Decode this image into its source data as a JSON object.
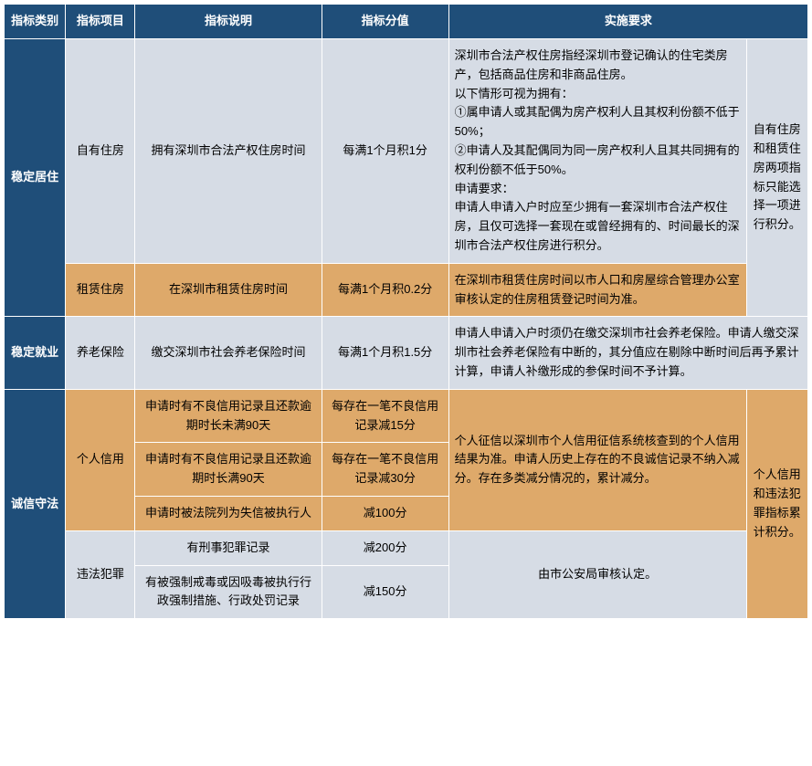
{
  "headers": {
    "category": "指标类别",
    "item": "指标项目",
    "desc": "指标说明",
    "score": "指标分值",
    "requirement": "实施要求"
  },
  "colors": {
    "header_bg": "#1f4e79",
    "header_fg": "#ffffff",
    "blue_bg": "#d6dce5",
    "orange_bg": "#dea96a",
    "border": "#ffffff"
  },
  "rows": {
    "r1": {
      "category": "稳定居住",
      "item": "自有住房",
      "desc": "拥有深圳市合法产权住房时间",
      "score": "每满1个月积1分",
      "req": "深圳市合法产权住房指经深圳市登记确认的住宅类房产，包括商品住房和非商品住房。\n以下情形可视为拥有：\n①属申请人或其配偶为房产权利人且其权利份额不低于50%；\n②申请人及其配偶同为同一房产权利人且其共同拥有的权利份额不低于50%。\n申请要求：\n申请人申请入户时应至少拥有一套深圳市合法产权住房，且仅可选择一套现在或曾经拥有的、时间最长的深圳市合法产权住房进行积分。",
      "note": "自有住房和租赁住房两项指标只能选择一项进行积分。"
    },
    "r2": {
      "item": "租赁住房",
      "desc": "在深圳市租赁住房时间",
      "score": "每满1个月积0.2分",
      "req": "在深圳市租赁住房时间以市人口和房屋综合管理办公室审核认定的住房租赁登记时间为准。"
    },
    "r3": {
      "category": "稳定就业",
      "item": "养老保险",
      "desc": "缴交深圳市社会养老保险时间",
      "score": "每满1个月积1.5分",
      "req": "申请人申请入户时须仍在缴交深圳市社会养老保险。申请人缴交深圳市社会养老保险有中断的，其分值应在剔除中断时间后再予累计计算，申请人补缴形成的参保时间不予计算。"
    },
    "r4": {
      "category": "诚信守法",
      "item": "个人信用",
      "desc": "申请时有不良信用记录且还款逾期时长未满90天",
      "score": "每存在一笔不良信用记录减15分",
      "req": "个人征信以深圳市个人信用征信系统核查到的个人信用结果为准。申请人历史上存在的不良诚信记录不纳入减分。存在多类减分情况的，累计减分。",
      "note": "个人信用和违法犯罪指标累计积分。"
    },
    "r5": {
      "desc": "申请时有不良信用记录且还款逾期时长满90天",
      "score": "每存在一笔不良信用记录减30分"
    },
    "r6": {
      "desc": "申请时被法院列为失信被执行人",
      "score": "减100分"
    },
    "r7": {
      "item": "违法犯罪",
      "desc": "有刑事犯罪记录",
      "score": "减200分",
      "req": "由市公安局审核认定。"
    },
    "r8": {
      "desc": "有被强制戒毒或因吸毒被执行行政强制措施、行政处罚记录",
      "score": "减150分"
    }
  }
}
